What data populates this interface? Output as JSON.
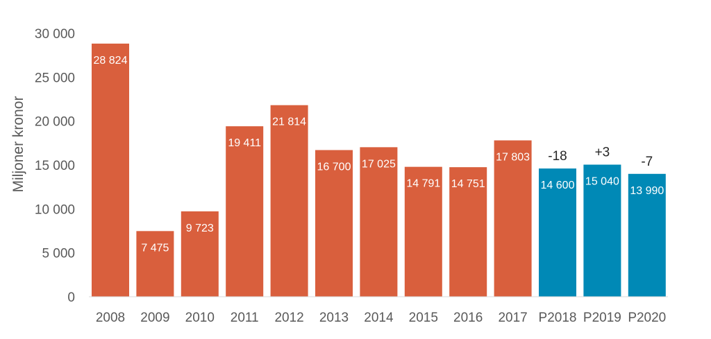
{
  "chart_data": {
    "type": "bar",
    "ylabel": "Miljoner kronor",
    "ylim": [
      0,
      30000
    ],
    "yticks": [
      0,
      5000,
      10000,
      15000,
      20000,
      25000,
      30000
    ],
    "ytick_labels": [
      "0",
      "5 000",
      "10 000",
      "15 000",
      "20 000",
      "25 000",
      "30 000"
    ],
    "grid": false,
    "categories": [
      "2008",
      "2009",
      "2010",
      "2011",
      "2012",
      "2013",
      "2014",
      "2015",
      "2016",
      "2017",
      "P2018",
      "P2019",
      "P2020"
    ],
    "values": [
      28824,
      7475,
      9723,
      19411,
      21814,
      16700,
      17025,
      14791,
      14751,
      17803,
      14600,
      15040,
      13990
    ],
    "value_labels": [
      "28 824",
      "7 475",
      "9 723",
      "19 411",
      "21 814",
      "16 700",
      "17 025",
      "14 791",
      "14 751",
      "17 803",
      "14 600",
      "15 040",
      "13 990"
    ],
    "annotations": [
      "",
      "",
      "",
      "",
      "",
      "",
      "",
      "",
      "",
      "",
      "-18",
      "+3",
      "-7"
    ],
    "bar_colors": [
      "#d95f3d",
      "#d95f3d",
      "#d95f3d",
      "#d95f3d",
      "#d95f3d",
      "#d95f3d",
      "#d95f3d",
      "#d95f3d",
      "#d95f3d",
      "#d95f3d",
      "#0089b6",
      "#0089b6",
      "#0089b6"
    ]
  }
}
